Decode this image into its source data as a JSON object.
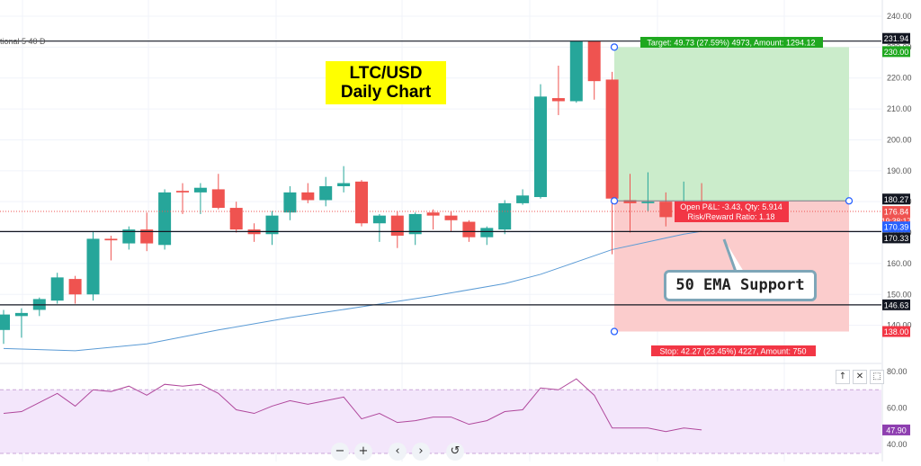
{
  "indicator_label": "tional 5 40 D",
  "title_box": {
    "line1": "LTC/USD",
    "line2": "Daily Chart"
  },
  "callout": {
    "text": "50 EMA Support"
  },
  "position": {
    "target_label": "Target: 49.73 (27.59%) 4973, Amount: 1294.12",
    "stop_label": "Stop: 42.27 (23.45%) 4227, Amount: 750",
    "pnl_line1": "Open P&L: -3.43, Qty: 5.914",
    "pnl_line2": "Risk/Reward Ratio: 1.18",
    "entry": 180.27,
    "target": 230.0,
    "stop": 138.0
  },
  "price_badges": [
    {
      "value": "231.94",
      "price": 231.94,
      "color": "#131722",
      "text_color": "#ffffff"
    },
    {
      "value": "230.00",
      "price": 230.0,
      "color": "#1fa81f",
      "text_color": "#ffffff"
    },
    {
      "value": "180.27",
      "price": 180.27,
      "color": "#131722",
      "text_color": "#ffffff"
    },
    {
      "value": "176.84",
      "price": 176.84,
      "color": "#ef5350",
      "text_color": "#ffffff",
      "sub": "19:38:17"
    },
    {
      "value": "170.39",
      "price": 170.39,
      "color": "#2962ff",
      "text_color": "#ffffff"
    },
    {
      "value": "170.33",
      "price": 170.33,
      "color": "#131722",
      "text_color": "#ffffff"
    },
    {
      "value": "146.63",
      "price": 146.63,
      "color": "#131722",
      "text_color": "#ffffff"
    },
    {
      "value": "138.00",
      "price": 138.0,
      "color": "#f23645",
      "text_color": "#ffffff"
    }
  ],
  "rsi_badge": {
    "value": "47.90",
    "level": 47.9,
    "color": "#8e3fb0"
  },
  "toolbar": {
    "zoom_out": "−",
    "zoom_in": "+",
    "back": "‹",
    "forward": "›",
    "reset": "↺"
  },
  "rsi_controls": {
    "up": "↑",
    "close": "✕",
    "expand": "⬚"
  },
  "colors": {
    "up": "#26a69a",
    "down": "#ef5350",
    "ema": "#5b9bd5",
    "rsi": "#b0489c",
    "profit_zone": "#c8ebc8",
    "loss_zone": "#fbc9c9",
    "rsi_band": "#f3e6fb"
  },
  "chart_data": {
    "type": "candlestick",
    "title": "LTC/USD Daily Chart",
    "price_axis": {
      "min": 130,
      "max": 240,
      "ticks": [
        240,
        230,
        220,
        210,
        200,
        190,
        180,
        170,
        160,
        150,
        140
      ]
    },
    "horizontal_levels": [
      231.94,
      170.33,
      146.63
    ],
    "candles": [
      {
        "o": 138.5,
        "h": 145.0,
        "l": 134.0,
        "c": 143.5
      },
      {
        "o": 143.0,
        "h": 145.5,
        "l": 136.0,
        "c": 144.0
      },
      {
        "o": 145.0,
        "h": 149.0,
        "l": 143.0,
        "c": 148.5
      },
      {
        "o": 148.0,
        "h": 157.0,
        "l": 147.0,
        "c": 155.5
      },
      {
        "o": 155.0,
        "h": 156.0,
        "l": 147.0,
        "c": 150.0
      },
      {
        "o": 150.0,
        "h": 170.5,
        "l": 148.0,
        "c": 168.0
      },
      {
        "o": 168.0,
        "h": 169.0,
        "l": 161.0,
        "c": 167.5
      },
      {
        "o": 166.5,
        "h": 172.0,
        "l": 164.5,
        "c": 171.0
      },
      {
        "o": 171.0,
        "h": 176.5,
        "l": 164.0,
        "c": 166.5
      },
      {
        "o": 166.0,
        "h": 184.0,
        "l": 164.5,
        "c": 183.0
      },
      {
        "o": 183.5,
        "h": 186.0,
        "l": 176.0,
        "c": 183.0
      },
      {
        "o": 183.0,
        "h": 186.0,
        "l": 176.0,
        "c": 184.5
      },
      {
        "o": 184.0,
        "h": 189.0,
        "l": 177.5,
        "c": 178.0
      },
      {
        "o": 178.0,
        "h": 180.0,
        "l": 170.0,
        "c": 171.0
      },
      {
        "o": 171.0,
        "h": 173.0,
        "l": 167.0,
        "c": 169.5
      },
      {
        "o": 169.5,
        "h": 177.0,
        "l": 166.0,
        "c": 175.5
      },
      {
        "o": 176.5,
        "h": 185.0,
        "l": 174.0,
        "c": 183.0
      },
      {
        "o": 183.0,
        "h": 186.0,
        "l": 179.5,
        "c": 180.5
      },
      {
        "o": 180.5,
        "h": 188.0,
        "l": 178.5,
        "c": 185.0
      },
      {
        "o": 185.0,
        "h": 191.5,
        "l": 183.0,
        "c": 186.0
      },
      {
        "o": 186.5,
        "h": 187.0,
        "l": 172.0,
        "c": 173.0
      },
      {
        "o": 173.0,
        "h": 176.0,
        "l": 167.0,
        "c": 175.5
      },
      {
        "o": 175.5,
        "h": 177.0,
        "l": 165.0,
        "c": 169.0
      },
      {
        "o": 169.5,
        "h": 176.5,
        "l": 166.0,
        "c": 176.0
      },
      {
        "o": 176.5,
        "h": 177.5,
        "l": 171.0,
        "c": 175.5
      },
      {
        "o": 175.5,
        "h": 177.0,
        "l": 170.5,
        "c": 174.0
      },
      {
        "o": 173.5,
        "h": 174.0,
        "l": 167.0,
        "c": 168.5
      },
      {
        "o": 168.5,
        "h": 172.0,
        "l": 166.0,
        "c": 171.5
      },
      {
        "o": 171.0,
        "h": 180.5,
        "l": 169.5,
        "c": 179.5
      },
      {
        "o": 179.5,
        "h": 184.0,
        "l": 179.0,
        "c": 182.0
      },
      {
        "o": 181.5,
        "h": 218.0,
        "l": 181.0,
        "c": 214.0
      },
      {
        "o": 213.5,
        "h": 224.0,
        "l": 208.0,
        "c": 212.5
      },
      {
        "o": 212.5,
        "h": 232.0,
        "l": 212.0,
        "c": 232.0
      },
      {
        "o": 232.0,
        "h": 232.0,
        "l": 213.0,
        "c": 219.0
      },
      {
        "o": 219.5,
        "h": 222.0,
        "l": 163.0,
        "c": 181.0
      },
      {
        "o": 180.5,
        "h": 189.0,
        "l": 170.0,
        "c": 179.5
      },
      {
        "o": 179.5,
        "h": 189.5,
        "l": 177.0,
        "c": 180.0
      },
      {
        "o": 180.0,
        "h": 183.0,
        "l": 172.0,
        "c": 175.0
      },
      {
        "o": 175.0,
        "h": 186.5,
        "l": 174.5,
        "c": 177.0
      },
      {
        "o": 177.0,
        "h": 186.0,
        "l": 175.5,
        "c": 176.8
      }
    ],
    "ema50": [
      {
        "i": 0,
        "v": 132.5
      },
      {
        "i": 4,
        "v": 131.8
      },
      {
        "i": 8,
        "v": 134.0
      },
      {
        "i": 12,
        "v": 138.5
      },
      {
        "i": 16,
        "v": 142.5
      },
      {
        "i": 20,
        "v": 146.0
      },
      {
        "i": 24,
        "v": 149.5
      },
      {
        "i": 28,
        "v": 153.5
      },
      {
        "i": 30,
        "v": 156.5
      },
      {
        "i": 32,
        "v": 160.5
      },
      {
        "i": 34,
        "v": 164.5
      },
      {
        "i": 36,
        "v": 167.0
      },
      {
        "i": 38,
        "v": 169.5
      },
      {
        "i": 39,
        "v": 170.4
      }
    ],
    "rsi": {
      "min": 35,
      "max": 82,
      "upper_band": 70,
      "lower_band": 30,
      "ticks": [
        80,
        60,
        40
      ],
      "values": [
        57,
        58,
        63,
        68,
        61,
        70,
        69,
        72,
        67,
        73,
        72,
        73,
        68,
        59,
        57,
        61,
        64,
        62,
        64,
        66,
        54,
        57,
        52,
        53,
        55,
        55,
        51,
        53,
        58,
        59,
        71,
        70,
        76,
        67,
        49,
        49,
        49,
        47,
        49,
        47.9
      ]
    }
  }
}
